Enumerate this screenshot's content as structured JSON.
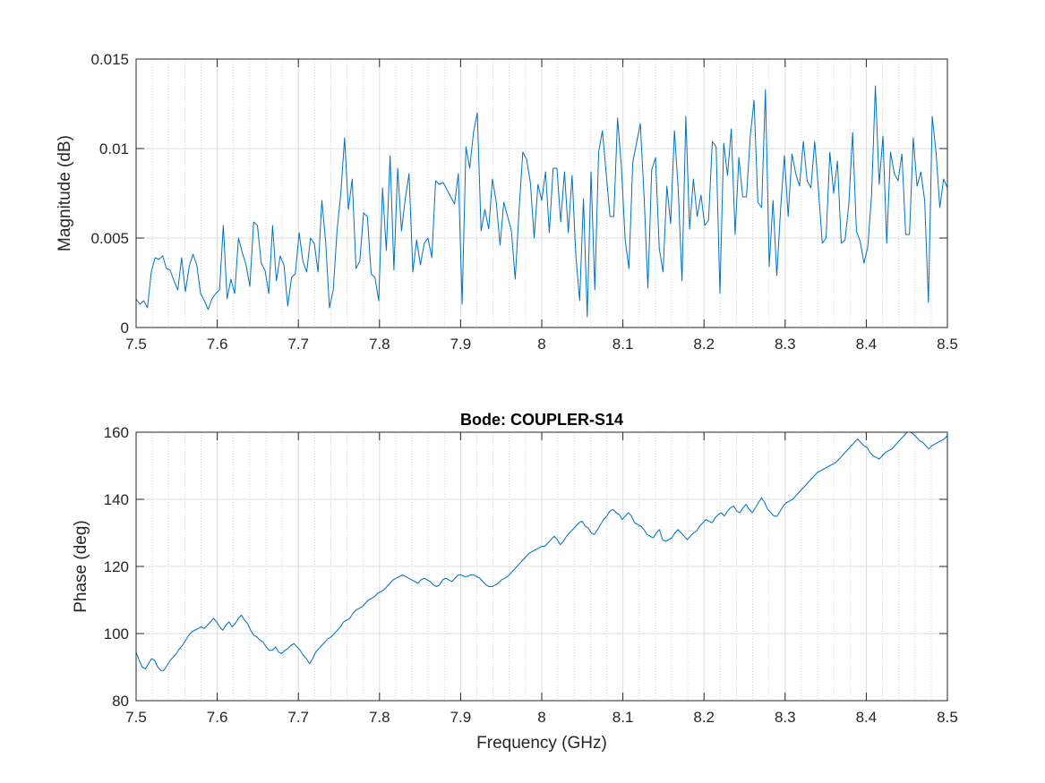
{
  "chart_data": [
    {
      "type": "line",
      "title": "",
      "xlabel": "",
      "ylabel": "Magnitude (dB)",
      "xlim": [
        7.5,
        8.5
      ],
      "ylim": [
        0,
        0.015
      ],
      "x_ticks": [
        7.5,
        7.6,
        7.7,
        7.8,
        7.9,
        8.0,
        8.1,
        8.2,
        8.3,
        8.4,
        8.5
      ],
      "x_tick_labels": [
        "7.5",
        "7.6",
        "7.7",
        "7.8",
        "7.9",
        "8",
        "8.1",
        "8.2",
        "8.3",
        "8.4",
        "8.5"
      ],
      "y_ticks": [
        0,
        0.005,
        0.01,
        0.015
      ],
      "y_tick_labels": [
        "0",
        "0.005",
        "0.01",
        "0.015"
      ],
      "grid": true,
      "minor_grid_x": true,
      "line_color": "#0072BD",
      "series": [
        {
          "x_start": 7.5,
          "x_end": 8.5,
          "values": [
            0.0016,
            0.0013,
            0.0015,
            0.0011,
            0.0031,
            0.0039,
            0.0038,
            0.004,
            0.0033,
            0.0032,
            0.0026,
            0.0021,
            0.0039,
            0.002,
            0.0034,
            0.0041,
            0.0035,
            0.0019,
            0.0015,
            0.001,
            0.0016,
            0.0019,
            0.0021,
            0.0057,
            0.0016,
            0.0027,
            0.0019,
            0.005,
            0.0042,
            0.0035,
            0.0023,
            0.0059,
            0.0057,
            0.0036,
            0.0032,
            0.0019,
            0.0057,
            0.0026,
            0.004,
            0.0035,
            0.0012,
            0.0028,
            0.003,
            0.0053,
            0.0037,
            0.0031,
            0.005,
            0.0047,
            0.0031,
            0.0071,
            0.0048,
            0.0011,
            0.0021,
            0.0054,
            0.0075,
            0.0106,
            0.0066,
            0.0083,
            0.0033,
            0.0037,
            0.0064,
            0.0062,
            0.003,
            0.0028,
            0.0015,
            0.0078,
            0.0043,
            0.0096,
            0.0032,
            0.0089,
            0.0054,
            0.0072,
            0.0086,
            0.0031,
            0.0049,
            0.0035,
            0.0047,
            0.005,
            0.0039,
            0.0082,
            0.008,
            0.0081,
            0.0077,
            0.0073,
            0.0069,
            0.0086,
            0.0013,
            0.0101,
            0.0089,
            0.0109,
            0.012,
            0.0054,
            0.0066,
            0.0055,
            0.0083,
            0.007,
            0.0046,
            0.007,
            0.0062,
            0.0054,
            0.0027,
            0.0065,
            0.0098,
            0.0094,
            0.0081,
            0.005,
            0.008,
            0.0071,
            0.0087,
            0.0053,
            0.0089,
            0.0089,
            0.0059,
            0.0087,
            0.0053,
            0.0085,
            0.004,
            0.0015,
            0.0072,
            0.0006,
            0.0087,
            0.0021,
            0.0098,
            0.011,
            0.0086,
            0.0062,
            0.0062,
            0.0117,
            0.009,
            0.0049,
            0.0033,
            0.0092,
            0.0103,
            0.0114,
            0.0073,
            0.0022,
            0.0088,
            0.0095,
            0.0044,
            0.0031,
            0.0079,
            0.0058,
            0.011,
            0.0077,
            0.0026,
            0.0118,
            0.0055,
            0.0083,
            0.0062,
            0.0074,
            0.0057,
            0.006,
            0.0104,
            0.0101,
            0.0019,
            0.0103,
            0.0085,
            0.0111,
            0.0052,
            0.0095,
            0.0073,
            0.0073,
            0.0107,
            0.0127,
            0.007,
            0.0067,
            0.0133,
            0.0034,
            0.0071,
            0.0029,
            0.0066,
            0.0096,
            0.0062,
            0.0097,
            0.0086,
            0.0079,
            0.0104,
            0.0082,
            0.0078,
            0.0104,
            0.0077,
            0.0047,
            0.005,
            0.0098,
            0.0075,
            0.0093,
            0.0047,
            0.0049,
            0.0069,
            0.0109,
            0.0054,
            0.0048,
            0.0036,
            0.0045,
            0.0074,
            0.0135,
            0.008,
            0.0107,
            0.0047,
            0.0098,
            0.0086,
            0.0082,
            0.0097,
            0.0052,
            0.0052,
            0.0106,
            0.0079,
            0.0087,
            0.0071,
            0.0014,
            0.0118,
            0.0098,
            0.0067,
            0.0083,
            0.0078
          ]
        }
      ]
    },
    {
      "type": "line",
      "title": "Bode: COUPLER-S14",
      "xlabel": "Frequency (GHz)",
      "ylabel": "Phase (deg)",
      "xlim": [
        7.5,
        8.5
      ],
      "ylim": [
        80,
        160
      ],
      "x_ticks": [
        7.5,
        7.6,
        7.7,
        7.8,
        7.9,
        8.0,
        8.1,
        8.2,
        8.3,
        8.4,
        8.5
      ],
      "x_tick_labels": [
        "7.5",
        "7.6",
        "7.7",
        "7.8",
        "7.9",
        "8",
        "8.1",
        "8.2",
        "8.3",
        "8.4",
        "8.5"
      ],
      "y_ticks": [
        80,
        100,
        120,
        140,
        160
      ],
      "y_tick_labels": [
        "80",
        "100",
        "120",
        "140",
        "160"
      ],
      "grid": true,
      "minor_grid_x": true,
      "line_color": "#0072BD",
      "series": [
        {
          "x_start": 7.5,
          "x_end": 8.5,
          "values": [
            94.5,
            92,
            90,
            89.5,
            91,
            92.5,
            92,
            90,
            89,
            89,
            90.5,
            92,
            93,
            94,
            95.5,
            96.5,
            98,
            99.5,
            100.5,
            101,
            101.5,
            102,
            101.5,
            102.5,
            103.5,
            104.5,
            103.5,
            102,
            101,
            102.5,
            103.5,
            102,
            103,
            104.5,
            105.5,
            104,
            103,
            101,
            99.5,
            99,
            98,
            97.5,
            96,
            95,
            95,
            96,
            94.5,
            94,
            95,
            95.5,
            96.5,
            97,
            96,
            95,
            93.5,
            92.5,
            91,
            92.5,
            94.5,
            95.5,
            96.5,
            97.5,
            98.5,
            99,
            100,
            101,
            102,
            103.5,
            104,
            104.5,
            106,
            107,
            107.5,
            108,
            109,
            110,
            110.5,
            111,
            112,
            112.5,
            113,
            114,
            115,
            116,
            116.5,
            117,
            117.5,
            117,
            116.5,
            116,
            115.5,
            115,
            116,
            116.5,
            116,
            115.5,
            114.5,
            114,
            114.5,
            116,
            116.5,
            116,
            115.5,
            116.5,
            117.5,
            117.5,
            117,
            117,
            117.5,
            117.5,
            117,
            116.5,
            115.5,
            114.5,
            114,
            114,
            114.5,
            115,
            116,
            116.5,
            117,
            118,
            119,
            120,
            121,
            122,
            123,
            124,
            124.5,
            125,
            125.5,
            126,
            126,
            127,
            128,
            129,
            128,
            126.5,
            127.5,
            129,
            130,
            131,
            132,
            133,
            133.5,
            132,
            131.5,
            130,
            129.5,
            131,
            132.5,
            134,
            135,
            136.5,
            137,
            136,
            135.5,
            134,
            135,
            136,
            135,
            133,
            132.5,
            132,
            131,
            129.5,
            129,
            128.5,
            130,
            131,
            128,
            127.5,
            128,
            128.5,
            130,
            131,
            130,
            129,
            128,
            129,
            130,
            130.5,
            132,
            133,
            134,
            133.5,
            133,
            134.5,
            135.5,
            136,
            135,
            136.5,
            137.5,
            138,
            136.5,
            136,
            137.5,
            138.5,
            137,
            136,
            137.5,
            139,
            140.5,
            139,
            137,
            136,
            135,
            135,
            136.5,
            138,
            139,
            139.5,
            140,
            141,
            142,
            143,
            144,
            145,
            146,
            147,
            148,
            148.5,
            149,
            149.5,
            150,
            150.5,
            151,
            152,
            153,
            154,
            155,
            156,
            157,
            158,
            157,
            156,
            155.5,
            154,
            153,
            152.5,
            152,
            153,
            154,
            154.5,
            155,
            156,
            157,
            158,
            159,
            160,
            160,
            159.5,
            158.5,
            157.5,
            157,
            156,
            155,
            156,
            156.5,
            157,
            157.5,
            158,
            159
          ]
        }
      ]
    }
  ]
}
